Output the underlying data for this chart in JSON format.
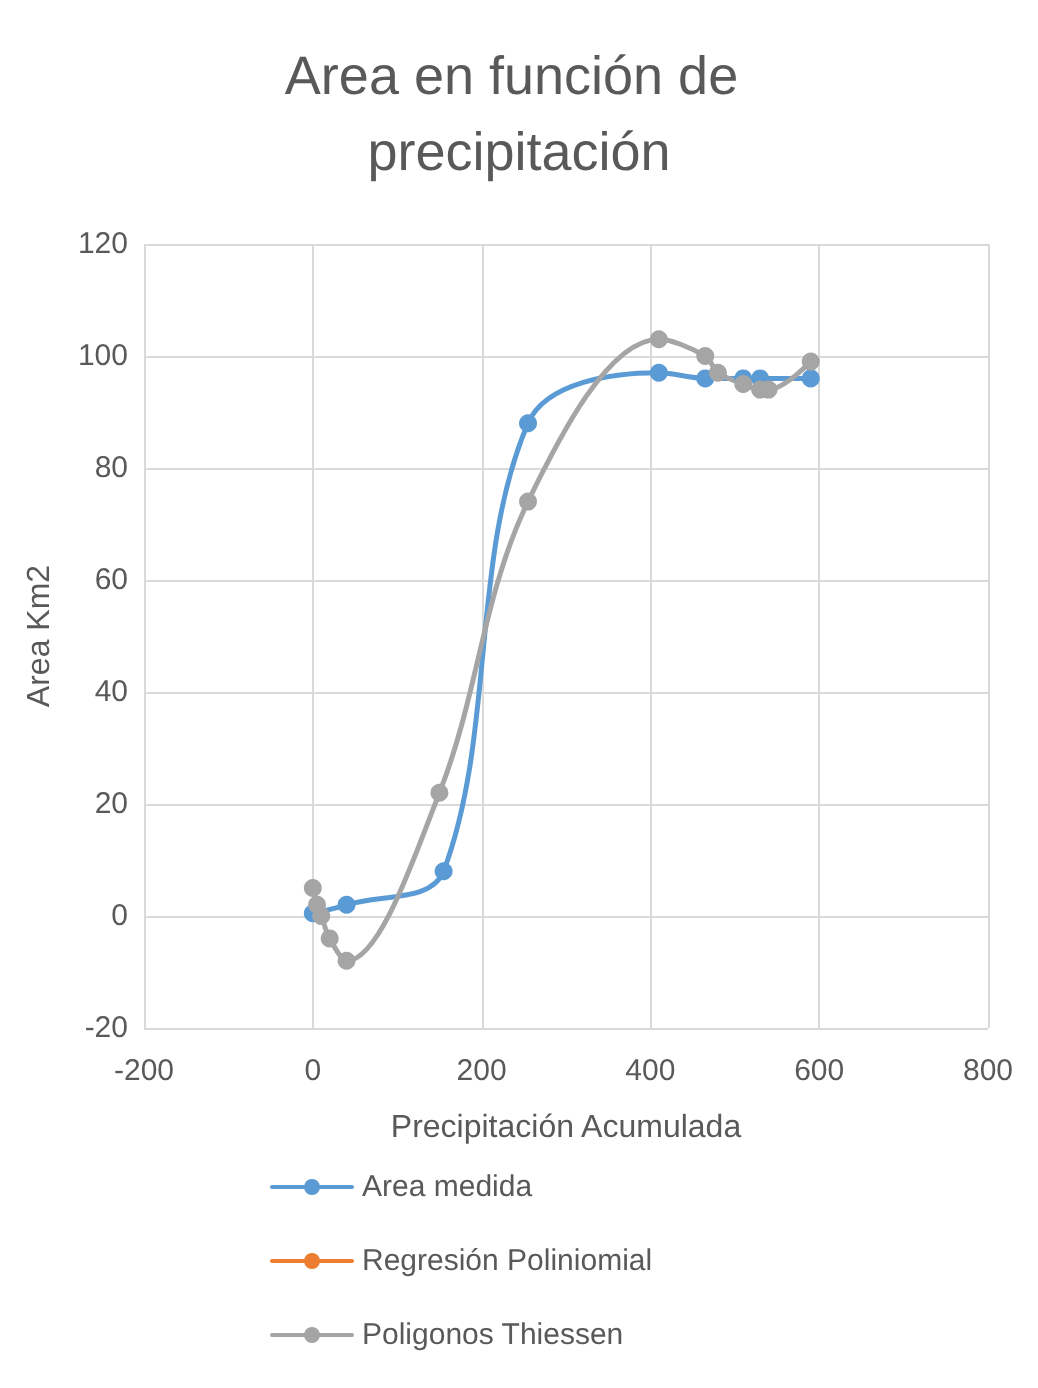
{
  "chart_data": {
    "type": "line",
    "title": "Area en función de precipitación",
    "xlabel": "Precipitación Acumulada",
    "ylabel": "Area Km2",
    "series": [
      {
        "name": "Area medida",
        "color": "#5b9bd5",
        "x": [
          0,
          40,
          155,
          255,
          410,
          465,
          510,
          530,
          590
        ],
        "values": [
          0.5,
          2,
          8,
          88,
          97,
          96,
          96,
          96,
          96
        ]
      },
      {
        "name": "Regresión Poliniomial",
        "color": "#ed7d31"
      },
      {
        "name": "Poligonos Thiessen",
        "color": "#a5a5a5",
        "x": [
          0,
          5,
          10,
          20,
          40,
          150,
          255,
          410,
          465,
          480,
          510,
          530,
          540,
          590
        ],
        "values": [
          5,
          2,
          0,
          -4,
          -8,
          22,
          74,
          103,
          100,
          97,
          95,
          94,
          94,
          99
        ]
      }
    ],
    "xlim": [
      -200,
      800
    ],
    "xticks": [
      -200,
      0,
      200,
      400,
      600,
      800
    ],
    "ylim": [
      -20,
      120
    ],
    "yticks": [
      -20,
      0,
      20,
      40,
      60,
      80,
      100,
      120
    ],
    "grid": true,
    "legend": "bottom",
    "marker": "circle",
    "line_style": "solid"
  }
}
